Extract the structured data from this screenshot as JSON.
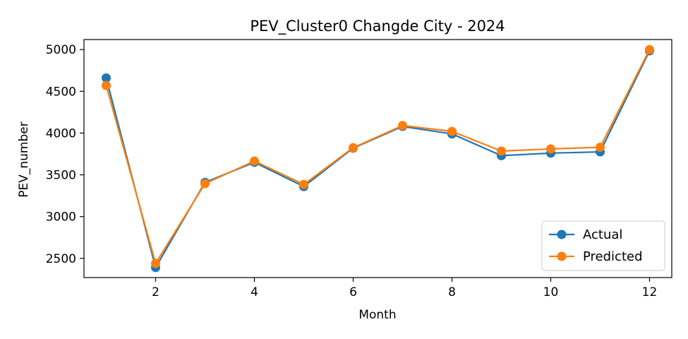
{
  "chart_data": {
    "type": "line",
    "title": "PEV_Cluster0 Changde City - 2024",
    "xlabel": "Month",
    "ylabel": "PEV_number",
    "x": [
      1,
      2,
      3,
      4,
      5,
      6,
      7,
      8,
      9,
      10,
      11,
      12
    ],
    "xlim": [
      0.55,
      12.45
    ],
    "ylim": [
      2270,
      5120
    ],
    "xticks": [
      2,
      4,
      6,
      8,
      10,
      12
    ],
    "yticks": [
      2500,
      3000,
      3500,
      4000,
      4500,
      5000
    ],
    "legend_position": "lower-right",
    "grid": false,
    "series": [
      {
        "name": "Actual",
        "color": "#1f77b4",
        "values": [
          4660,
          2390,
          3410,
          3650,
          3360,
          3820,
          4080,
          3990,
          3730,
          3760,
          3775,
          4985
        ]
      },
      {
        "name": "Predicted",
        "color": "#ff7f0e",
        "values": [
          4570,
          2440,
          3395,
          3665,
          3385,
          3825,
          4090,
          4020,
          3785,
          3810,
          3830,
          5000
        ]
      }
    ]
  }
}
